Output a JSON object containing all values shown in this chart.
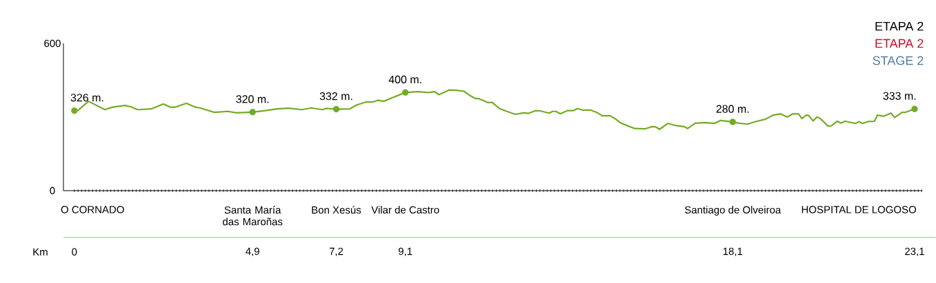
{
  "chart_data": {
    "type": "line",
    "title": "ETAPA 2",
    "subtitle": "ETAPA 2",
    "xlabel": "Km",
    "annotations": [
      "STAGE 2",
      "O CORNADO",
      "Santa María das Maroñas",
      "Bon Xesús",
      "Vilar de Castro",
      "Santiago de Olveiroa",
      "HOSPITAL DE LOGOSO"
    ],
    "xlim": [
      -0.3,
      23.3
    ],
    "xticks": [
      0,
      {
        "value": 4.9,
        "label": "4,9"
      },
      {
        "value": 7.2,
        "label": "7,2"
      },
      {
        "value": 9.1,
        "label": "9,1"
      },
      {
        "value": 18.1,
        "label": "18,1"
      },
      {
        "value": 23.1,
        "label": "23,1"
      }
    ],
    "ylim": [
      0,
      600
    ],
    "yticks": [
      0,
      600
    ],
    "series": [
      {
        "color": "#74ab25",
        "marker": "none",
        "x": [
          0,
          0.11,
          0.39,
          0.84,
          1.05,
          1.4,
          1.55,
          1.74,
          2.11,
          2.45,
          2.64,
          2.77,
          3.08,
          3.33,
          3.45,
          3.85,
          4.22,
          4.45,
          4.9,
          5.25,
          5.57,
          5.88,
          6.26,
          6.51,
          6.82,
          6.91,
          7.2,
          7.57,
          7.76,
          8.01,
          8.19,
          8.34,
          8.51,
          8.75,
          8.97,
          9.1,
          9.44,
          9.74,
          9.91,
          10.02,
          10.3,
          10.49,
          10.71,
          10.86,
          11.03,
          11.12,
          11.37,
          11.49,
          11.68,
          11.89,
          12.12,
          12.36,
          12.49,
          12.68,
          12.8,
          13.05,
          13.15,
          13.24,
          13.36,
          13.55,
          13.71,
          13.83,
          13.98,
          14.2,
          14.36,
          14.51,
          14.73,
          14.85,
          15.01,
          15.23,
          15.41,
          15.7,
          15.88,
          15.98,
          16.09,
          16.32,
          16.51,
          16.76,
          16.86,
          17.07,
          17.35,
          17.6,
          17.76,
          17.88,
          18.1,
          18.26,
          18.51,
          18.72,
          19.0,
          19.22,
          19.41,
          19.6,
          19.75,
          19.91,
          20.0,
          20.13,
          20.19,
          20.31,
          20.41,
          20.5,
          20.72,
          20.81,
          20.97,
          21.08,
          21.19,
          21.47,
          21.58,
          21.67,
          21.81,
          22.0,
          22.08,
          22.25,
          22.45,
          22.55,
          22.76,
          22.84,
          23.1
        ],
        "values": [
          326,
          328,
          364,
          330,
          340,
          347,
          342,
          330,
          333,
          353,
          340,
          340,
          356,
          340,
          337,
          319,
          323,
          317,
          320,
          326,
          333,
          336,
          330,
          337,
          330,
          335,
          332,
          333,
          349,
          361,
          361,
          368,
          364,
          379,
          392,
          400,
          403,
          400,
          403,
          391,
          410,
          409,
          405,
          389,
          375,
          375,
          359,
          359,
          335,
          323,
          311,
          317,
          315,
          326,
          325,
          316,
          323,
          323,
          313,
          326,
          326,
          334,
          328,
          328,
          319,
          305,
          305,
          295,
          277,
          263,
          253,
          252,
          261,
          260,
          250,
          274,
          266,
          261,
          253,
          275,
          277,
          274,
          286,
          284,
          280,
          275,
          271,
          281,
          291,
          308,
          313,
          300,
          313,
          313,
          294,
          308,
          306,
          284,
          300,
          295,
          263,
          264,
          283,
          275,
          283,
          274,
          281,
          274,
          281,
          283,
          308,
          303,
          316,
          298,
          319,
          319,
          333
        ]
      },
      {
        "type": "scatter",
        "color": "#74ab25",
        "marker": "circle",
        "x": [
          0,
          4.9,
          7.2,
          9.1,
          18.1,
          23.1
        ],
        "values": [
          326,
          320,
          332,
          400,
          280,
          333
        ],
        "value_labels": [
          "326 m.",
          "320 m.",
          "332 m.",
          "400 m.",
          "280 m.",
          "333 m."
        ]
      }
    ]
  }
}
